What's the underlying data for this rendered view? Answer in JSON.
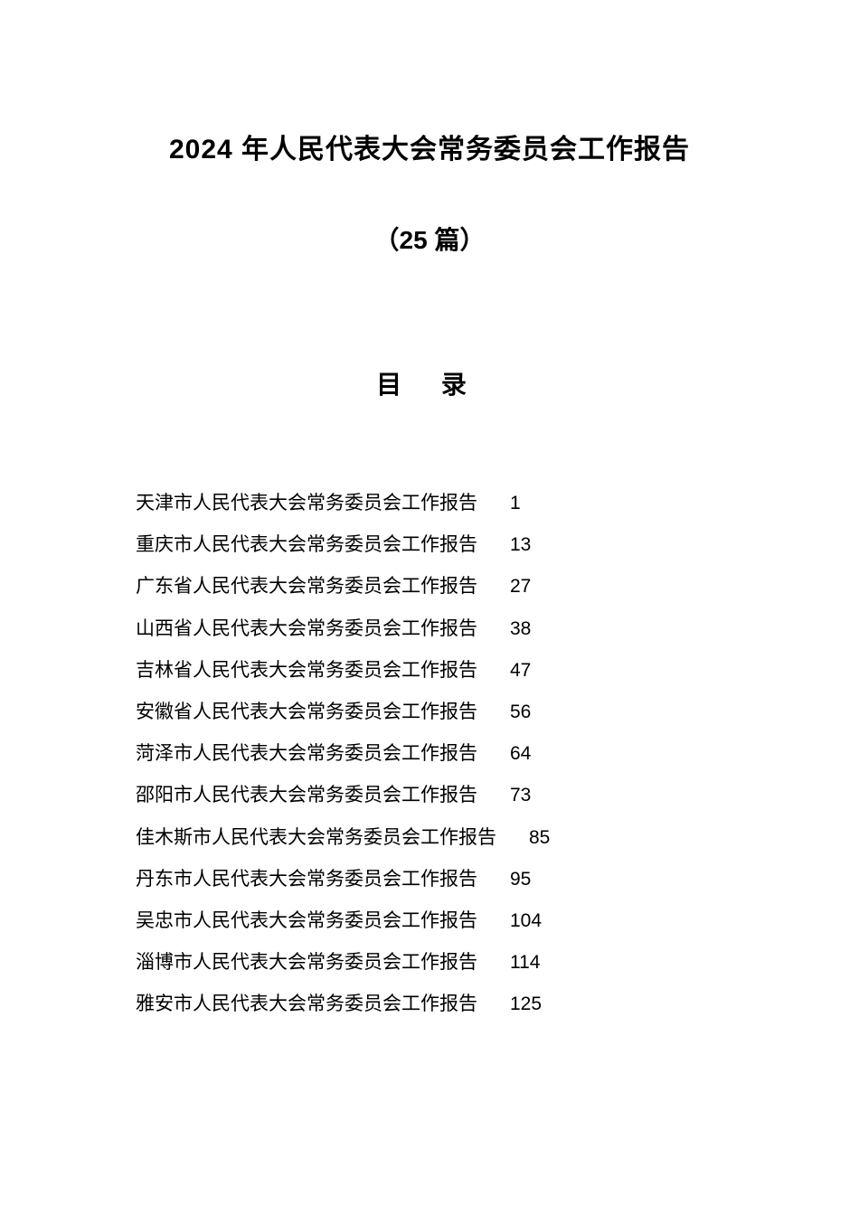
{
  "header": {
    "main_title": "2024 年人民代表大会常务委员会工作报告",
    "subtitle": "（25 篇）",
    "toc_heading": "目 录"
  },
  "style": {
    "background_color": "#ffffff",
    "text_color": "#000000",
    "title_fontsize": 30,
    "subtitle_fontsize": 28,
    "toc_heading_fontsize": 28,
    "row_fontsize": 21,
    "row_line_height": 2.2,
    "page_margin_left": 36
  },
  "toc": {
    "entries": [
      {
        "title": "天津市人民代表大会常务委员会工作报告",
        "page": "1"
      },
      {
        "title": "重庆市人民代表大会常务委员会工作报告",
        "page": "13"
      },
      {
        "title": "广东省人民代表大会常务委员会工作报告",
        "page": "27"
      },
      {
        "title": "山西省人民代表大会常务委员会工作报告",
        "page": "38"
      },
      {
        "title": "吉林省人民代表大会常务委员会工作报告",
        "page": "47"
      },
      {
        "title": "安徽省人民代表大会常务委员会工作报告",
        "page": "56"
      },
      {
        "title": "菏泽市人民代表大会常务委员会工作报告",
        "page": "64"
      },
      {
        "title": "邵阳市人民代表大会常务委员会工作报告",
        "page": "73"
      },
      {
        "title": "佳木斯市人民代表大会常务委员会工作报告",
        "page": "85"
      },
      {
        "title": "丹东市人民代表大会常务委员会工作报告",
        "page": "95"
      },
      {
        "title": "吴忠市人民代表大会常务委员会工作报告",
        "page": "104"
      },
      {
        "title": "淄博市人民代表大会常务委员会工作报告",
        "page": "114"
      },
      {
        "title": "雅安市人民代表大会常务委员会工作报告",
        "page": "125"
      }
    ]
  }
}
